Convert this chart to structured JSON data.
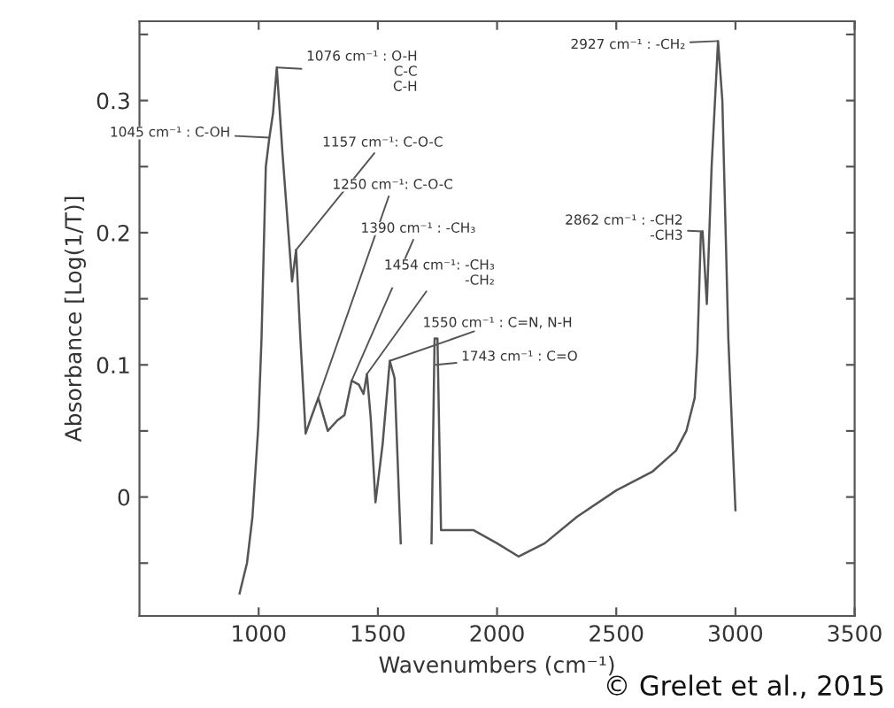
{
  "chart_data": {
    "type": "line",
    "xlabel": "Wavenumbers (cm⁻¹)",
    "ylabel": "Absorbance [Log(1/T)]",
    "series": [
      {
        "color": "#555555",
        "x": [
          920,
          951,
          974,
          998,
          1012,
          1030,
          1045,
          1060,
          1076,
          1100,
          1140,
          1157,
          1175,
          1197,
          1220,
          1250,
          1290,
          1330,
          1360,
          1390,
          1420,
          1440,
          1454,
          1470,
          1490,
          1520,
          1550,
          1570,
          1596,
          1660,
          1725,
          1738,
          1750,
          1765,
          1900,
          2000,
          2090,
          2200,
          2335,
          2500,
          2650,
          2750,
          2794,
          2829,
          2840,
          2855,
          2862,
          2880,
          2900,
          2927,
          2945,
          2970,
          3000
        ],
        "values": [
          -0.073,
          -0.05,
          -0.015,
          0.052,
          0.12,
          0.25,
          0.272,
          0.29,
          0.325,
          0.26,
          0.163,
          0.187,
          0.12,
          0.048,
          0.06,
          0.075,
          0.05,
          0.058,
          0.062,
          0.088,
          0.085,
          0.078,
          0.093,
          0.06,
          -0.004,
          0.04,
          0.103,
          0.09,
          -0.035,
          null,
          -0.035,
          0.12,
          0.12,
          -0.025,
          -0.025,
          -0.035,
          -0.045,
          -0.035,
          -0.015,
          0.005,
          0.019,
          0.035,
          0.05,
          0.075,
          0.11,
          0.2,
          0.201,
          0.146,
          0.25,
          0.345,
          0.3,
          0.12,
          -0.01
        ]
      }
    ],
    "xlim": [
      500,
      3500
    ],
    "ylim": [
      -0.09,
      0.36
    ],
    "xticks": [
      1000,
      1500,
      2000,
      2500,
      3000,
      3500
    ],
    "yticks": [
      {
        "value": -0.05,
        "label": null
      },
      0,
      {
        "value": 0.05,
        "label": null
      },
      0.1,
      {
        "value": 0.15,
        "label": null
      },
      0.2,
      {
        "value": 0.25,
        "label": null
      },
      0.3,
      {
        "value": 0.35,
        "label": null
      }
    ],
    "grid": false,
    "legend": false,
    "marker": "none",
    "line_style": "solid",
    "annotations": [
      {
        "text": "1045 cm⁻¹ : C-OH",
        "x": 1045,
        "y": 0.272
      },
      {
        "text": "1076 cm⁻¹ : O-H\nC-C\nC-H",
        "x": 1076,
        "y": 0.325
      },
      {
        "text": "1157 cm⁻¹: C-O-C",
        "x": 1157,
        "y": 0.187
      },
      {
        "text": "1250 cm⁻¹: C-O-C",
        "x": 1250,
        "y": 0.075
      },
      {
        "text": "1390 cm⁻¹ : -CH₃",
        "x": 1390,
        "y": 0.088
      },
      {
        "text": "1454 cm⁻¹: -CH₃\n-CH₂",
        "x": 1454,
        "y": 0.093
      },
      {
        "text": "1550 cm⁻¹ : C=N, N-H",
        "x": 1550,
        "y": 0.103
      },
      {
        "text": "1743 cm⁻¹ : C=O",
        "x": 1743,
        "y": 0.1
      },
      {
        "text": "2862 cm⁻¹ : -CH2\n-CH3",
        "x": 2862,
        "y": 0.201
      },
      {
        "text": "2927 cm⁻¹ : -CH₂",
        "x": 2927,
        "y": 0.345
      },
      "© Grelet et al., 2015"
    ]
  }
}
